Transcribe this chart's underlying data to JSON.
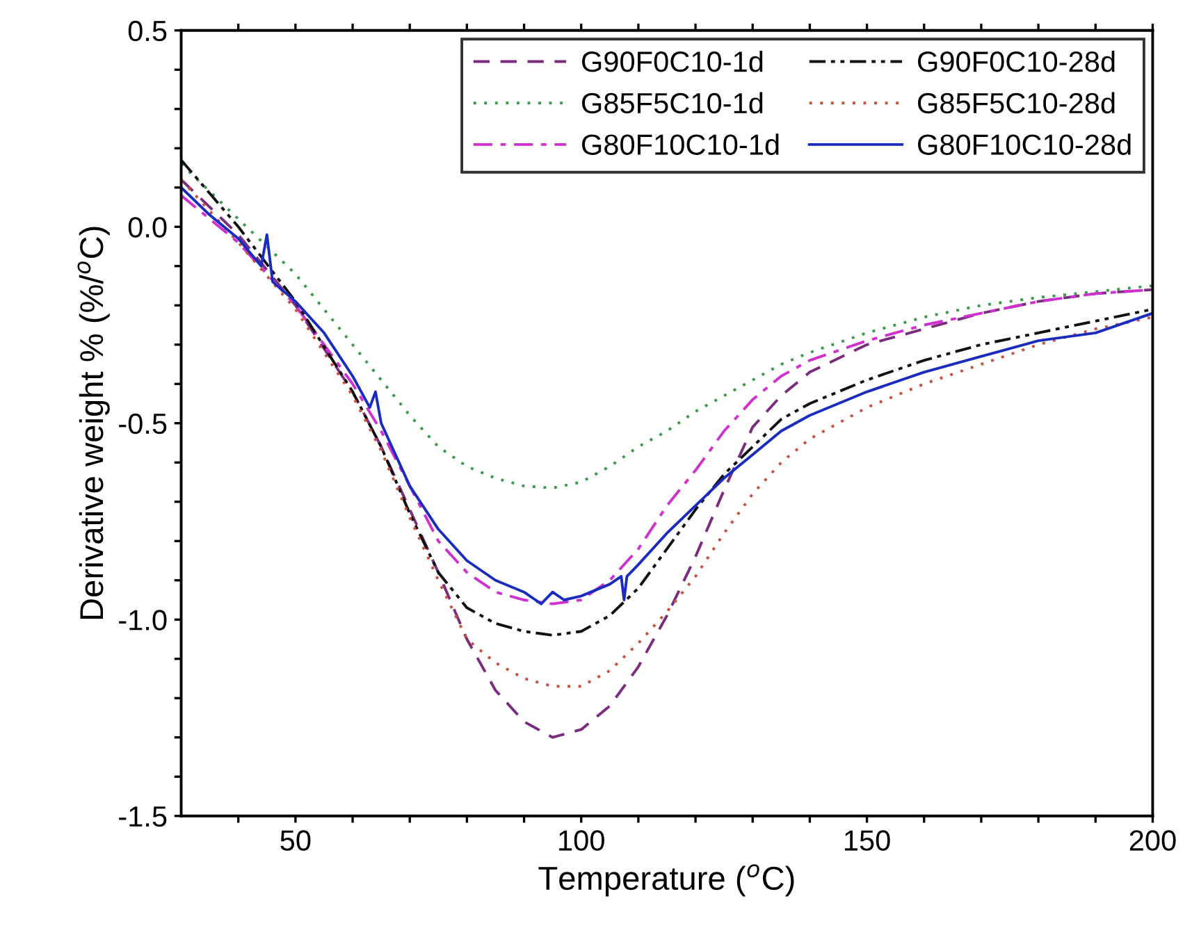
{
  "chart_data": {
    "type": "line",
    "xlabel": "Temperature ($^{o}$C)",
    "ylabel": "Derivative weight % (%/$^{o}$C)",
    "xlim": [
      30,
      200
    ],
    "ylim": [
      -1.5,
      0.5
    ],
    "xticks": [
      {
        "value": 40,
        "label": null
      },
      50,
      {
        "value": 60,
        "label": null
      },
      {
        "value": 70,
        "label": null
      },
      {
        "value": 80,
        "label": null
      },
      {
        "value": 90,
        "label": null
      },
      100,
      {
        "value": 110,
        "label": null
      },
      {
        "value": 120,
        "label": null
      },
      {
        "value": 130,
        "label": null
      },
      {
        "value": 140,
        "label": null
      },
      150,
      {
        "value": 160,
        "label": null
      },
      {
        "value": 170,
        "label": null
      },
      {
        "value": 180,
        "label": null
      },
      {
        "value": 190,
        "label": null
      },
      200
    ],
    "yticks": [
      {
        "value": -1.5,
        "label": "-1.5"
      },
      {
        "value": -1.4,
        "label": null
      },
      {
        "value": -1.3,
        "label": null
      },
      {
        "value": -1.2,
        "label": null
      },
      {
        "value": -1.1,
        "label": null
      },
      {
        "value": -1.0,
        "label": "-1.0"
      },
      {
        "value": -0.9,
        "label": null
      },
      {
        "value": -0.8,
        "label": null
      },
      {
        "value": -0.7,
        "label": null
      },
      {
        "value": -0.6,
        "label": null
      },
      {
        "value": -0.5,
        "label": "-0.5"
      },
      {
        "value": -0.4,
        "label": null
      },
      {
        "value": -0.3,
        "label": null
      },
      {
        "value": -0.2,
        "label": null
      },
      {
        "value": -0.1,
        "label": null
      },
      {
        "value": 0.0,
        "label": "0.0"
      },
      {
        "value": 0.1,
        "label": null
      },
      {
        "value": 0.2,
        "label": null
      },
      {
        "value": 0.3,
        "label": null
      },
      {
        "value": 0.4,
        "label": null
      },
      {
        "value": 0.5,
        "label": "0.5"
      }
    ],
    "grid": false,
    "legend": "top right",
    "marker": "none",
    "series": [
      {
        "name": "G90F0C10-1d",
        "color": "#7a2c7e",
        "line_style": "dashed",
        "x": [
          30,
          40,
          50,
          60,
          65,
          70,
          75,
          80,
          85,
          90,
          95,
          100,
          105,
          110,
          115,
          120,
          125,
          130,
          135,
          140,
          150,
          160,
          170,
          180,
          190,
          200
        ],
        "values": [
          0.12,
          -0.02,
          -0.2,
          -0.42,
          -0.56,
          -0.72,
          -0.88,
          -1.05,
          -1.18,
          -1.26,
          -1.3,
          -1.28,
          -1.22,
          -1.12,
          -0.99,
          -0.84,
          -0.67,
          -0.51,
          -0.43,
          -0.37,
          -0.3,
          -0.26,
          -0.22,
          -0.19,
          -0.17,
          -0.16
        ]
      },
      {
        "name": "G85F5C10-1d",
        "color": "#3a9a4a",
        "line_style": "dotted",
        "x": [
          30,
          40,
          50,
          60,
          65,
          70,
          75,
          80,
          85,
          90,
          95,
          100,
          105,
          110,
          115,
          120,
          125,
          130,
          135,
          140,
          150,
          160,
          170,
          180,
          190,
          200
        ],
        "values": [
          0.16,
          0.02,
          -0.12,
          -0.3,
          -0.39,
          -0.48,
          -0.56,
          -0.61,
          -0.64,
          -0.66,
          -0.665,
          -0.65,
          -0.61,
          -0.56,
          -0.52,
          -0.47,
          -0.43,
          -0.39,
          -0.35,
          -0.32,
          -0.27,
          -0.23,
          -0.2,
          -0.18,
          -0.165,
          -0.15
        ]
      },
      {
        "name": "G80F10C10-1d",
        "color": "#d030d0",
        "line_style": "dashdot",
        "x": [
          30,
          40,
          50,
          60,
          65,
          70,
          75,
          80,
          85,
          90,
          95,
          100,
          105,
          110,
          115,
          120,
          125,
          130,
          135,
          140,
          150,
          160,
          170,
          180,
          190,
          200
        ],
        "values": [
          0.08,
          -0.04,
          -0.2,
          -0.4,
          -0.52,
          -0.66,
          -0.8,
          -0.88,
          -0.93,
          -0.95,
          -0.96,
          -0.95,
          -0.9,
          -0.82,
          -0.71,
          -0.62,
          -0.52,
          -0.44,
          -0.38,
          -0.34,
          -0.29,
          -0.25,
          -0.22,
          -0.19,
          -0.17,
          -0.16
        ]
      },
      {
        "name": "G90F0C10-28d",
        "color": "#111111",
        "line_style": "dashdotdot",
        "x": [
          30,
          40,
          50,
          60,
          65,
          70,
          75,
          80,
          85,
          90,
          95,
          100,
          105,
          110,
          115,
          120,
          125,
          130,
          135,
          140,
          150,
          160,
          170,
          180,
          190,
          200
        ],
        "values": [
          0.17,
          0.0,
          -0.19,
          -0.42,
          -0.56,
          -0.73,
          -0.88,
          -0.97,
          -1.01,
          -1.03,
          -1.04,
          -1.03,
          -0.99,
          -0.92,
          -0.82,
          -0.72,
          -0.63,
          -0.56,
          -0.49,
          -0.45,
          -0.39,
          -0.34,
          -0.3,
          -0.27,
          -0.24,
          -0.21
        ]
      },
      {
        "name": "G85F5C10-28d",
        "color": "#c8503c",
        "line_style": "dotted",
        "x": [
          30,
          40,
          50,
          60,
          65,
          70,
          75,
          80,
          85,
          90,
          95,
          100,
          105,
          110,
          115,
          120,
          125,
          130,
          135,
          140,
          150,
          160,
          170,
          180,
          190,
          200
        ],
        "values": [
          0.12,
          -0.04,
          -0.21,
          -0.43,
          -0.57,
          -0.74,
          -0.9,
          -1.05,
          -1.11,
          -1.15,
          -1.17,
          -1.17,
          -1.13,
          -1.06,
          -0.98,
          -0.89,
          -0.78,
          -0.68,
          -0.6,
          -0.54,
          -0.46,
          -0.4,
          -0.35,
          -0.3,
          -0.26,
          -0.23
        ]
      },
      {
        "name": "G80F10C10-28d",
        "color": "#1a2cc0",
        "line_style": "solid",
        "x": [
          30,
          35,
          40,
          44,
          45,
          46,
          50,
          55,
          60,
          63,
          64,
          65,
          70,
          75,
          80,
          85,
          90,
          93,
          95,
          97,
          100,
          105,
          107,
          107.5,
          108,
          110,
          115,
          120,
          125,
          130,
          135,
          140,
          150,
          160,
          170,
          180,
          190,
          200
        ],
        "values": [
          0.1,
          0.03,
          -0.03,
          -0.1,
          -0.02,
          -0.14,
          -0.19,
          -0.27,
          -0.38,
          -0.46,
          -0.42,
          -0.5,
          -0.66,
          -0.77,
          -0.85,
          -0.9,
          -0.93,
          -0.96,
          -0.93,
          -0.95,
          -0.94,
          -0.91,
          -0.89,
          -0.95,
          -0.89,
          -0.86,
          -0.78,
          -0.71,
          -0.64,
          -0.58,
          -0.52,
          -0.48,
          -0.42,
          -0.37,
          -0.33,
          -0.29,
          -0.27,
          -0.22
        ]
      }
    ]
  }
}
